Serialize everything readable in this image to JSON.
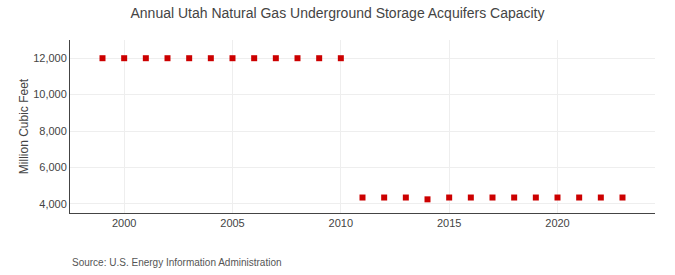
{
  "chart_data": {
    "type": "scatter",
    "title": "Annual Utah Natural Gas Underground Storage Acquifers Capacity",
    "y_label": "Million Cubic Feet",
    "annotations": [
      "Source: U.S. Energy Information Administration"
    ],
    "series": [
      {
        "x": [
          1999,
          2000,
          2001,
          2002,
          2003,
          2004,
          2005,
          2006,
          2007,
          2008,
          2009,
          2010
        ],
        "values": [
          12000,
          12000,
          12000,
          12000,
          12000,
          12000,
          12000,
          12000,
          12000,
          12000,
          12000,
          12000
        ],
        "color": "#cc0000",
        "marker": "square"
      },
      {
        "x": [
          2011,
          2012,
          2013,
          2014,
          2015,
          2016,
          2017,
          2018,
          2019,
          2020,
          2021,
          2022,
          2023
        ],
        "values": [
          4350,
          4350,
          4350,
          4250,
          4350,
          4350,
          4350,
          4350,
          4350,
          4350,
          4350,
          4350,
          4350
        ],
        "color": "#cc0000",
        "marker": "square"
      }
    ],
    "xlim": [
      1997.5,
      2024.5
    ],
    "ylim": [
      3500,
      13000
    ],
    "xticks": [
      2000,
      2005,
      2010,
      2015,
      2020
    ],
    "yticks": [
      {
        "value": 4000,
        "label": "4,000"
      },
      {
        "value": 6000,
        "label": "6,000"
      },
      {
        "value": 8000,
        "label": "8,000"
      },
      {
        "value": 10000,
        "label": "10,000"
      },
      {
        "value": 12000,
        "label": "12,000"
      }
    ],
    "grid": true
  }
}
